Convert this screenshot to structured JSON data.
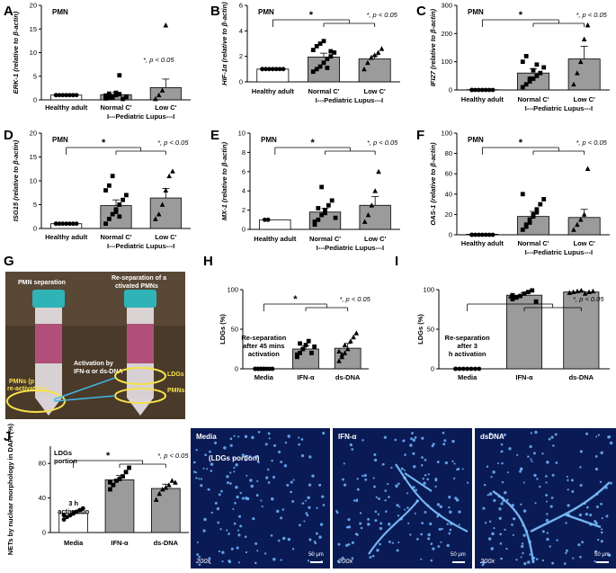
{
  "chart_data": [
    {
      "id": "A",
      "type": "bar",
      "panel": "A",
      "ylabel": "ERK-1 (relative to β-actin)",
      "cell": "PMN",
      "categories": [
        "Healthy adult",
        "Normal C'",
        "Low C'"
      ],
      "group_label": "I---Pediatric Lupus---I",
      "yticks": [
        0,
        5,
        10,
        15,
        20
      ],
      "ylim": [
        0,
        20
      ],
      "values": [
        1,
        1.1,
        2.6
      ],
      "errors": [
        0.05,
        0.5,
        1.8
      ],
      "points": [
        [
          1,
          1,
          1,
          1,
          1,
          1,
          1,
          1
        ],
        [
          0.3,
          0.5,
          0.8,
          1,
          1.2,
          0.2,
          0.6,
          0.9,
          1.3,
          0.4,
          1.5,
          5.2
        ],
        [
          0.2,
          1.0,
          2.0,
          15.8
        ]
      ],
      "markers": [
        "circle",
        "square",
        "triangle"
      ],
      "sig": {
        "star": "",
        "note": "*, p < 0.05"
      }
    },
    {
      "id": "B",
      "type": "bar",
      "panel": "B",
      "ylabel": "HIF-1α (relative to β-actin)",
      "cell": "PMN",
      "categories": [
        "Healthy adult",
        "Normal C'",
        "Low C'"
      ],
      "group_label": "I---Pediatric Lupus---I",
      "yticks": [
        0,
        2,
        4,
        6
      ],
      "ylim": [
        0,
        6
      ],
      "values": [
        1,
        1.95,
        1.8
      ],
      "errors": [
        0,
        0.3,
        0.25
      ],
      "points": [
        [
          1,
          1,
          1,
          1,
          1,
          1,
          1,
          1
        ],
        [
          0.8,
          1.0,
          1.2,
          1.5,
          1.8,
          2.0,
          2.3,
          2.5,
          2.8,
          3.0,
          3.2,
          1.1,
          2.4
        ],
        [
          1.0,
          1.5,
          1.9,
          2.1,
          2.3,
          2.6
        ]
      ],
      "markers": [
        "circle",
        "square",
        "triangle"
      ],
      "sig": {
        "star": "*",
        "note": "*, p < 0.05"
      }
    },
    {
      "id": "C",
      "type": "bar",
      "panel": "C",
      "ylabel": "IFI27 (relative to β-actin)",
      "cell": "PMN",
      "categories": [
        "Healthy adult",
        "Normal C'",
        "Low C'"
      ],
      "group_label": "I---Pediatric Lupus---I",
      "yticks": [
        0,
        100,
        200,
        300
      ],
      "ylim": [
        0,
        300
      ],
      "values": [
        1,
        60,
        110
      ],
      "errors": [
        0.5,
        15,
        45
      ],
      "points": [
        [
          0,
          0,
          0,
          0,
          0,
          0,
          0,
          0
        ],
        [
          10,
          20,
          30,
          40,
          50,
          60,
          80,
          100,
          120,
          40,
          70,
          90
        ],
        [
          20,
          60,
          100,
          180,
          230
        ]
      ],
      "markers": [
        "circle",
        "square",
        "triangle"
      ],
      "sig": {
        "star": "*",
        "note": "*, p < 0.05"
      }
    },
    {
      "id": "D",
      "type": "bar",
      "panel": "D",
      "ylabel": "ISG15 (relative to β-actin)",
      "cell": "PMN",
      "categories": [
        "Healthy adult",
        "Normal C'",
        "Low C'"
      ],
      "group_label": "I---Pediatric Lupus---I",
      "yticks": [
        0,
        5,
        10,
        15,
        20
      ],
      "ylim": [
        0,
        20
      ],
      "values": [
        1,
        4.8,
        6.4
      ],
      "errors": [
        0,
        1.2,
        2
      ],
      "points": [
        [
          1,
          1,
          1,
          1,
          1,
          1,
          1,
          1
        ],
        [
          1,
          2,
          3,
          4,
          5,
          6,
          7,
          8,
          9,
          11,
          3.5,
          2.5
        ],
        [
          2,
          3,
          5,
          8,
          11,
          12
        ]
      ],
      "markers": [
        "circle",
        "square",
        "triangle"
      ],
      "sig": {
        "star": "*",
        "note": "*, p < 0.05"
      }
    },
    {
      "id": "E",
      "type": "bar",
      "panel": "E",
      "ylabel": "MX-1 (relative to β-actin)",
      "cell": "PMN",
      "categories": [
        "Healthy adult",
        "Normal C'",
        "Low C'"
      ],
      "group_label": "I---Pediatric Lupus---I",
      "yticks": [
        0,
        2,
        4,
        6,
        8,
        10
      ],
      "ylim": [
        0,
        10
      ],
      "values": [
        1,
        1.8,
        2.5
      ],
      "errors": [
        0,
        0.4,
        0.9
      ],
      "points": [
        [
          1,
          1
        ],
        [
          0.5,
          1,
          1.5,
          2,
          2.5,
          3,
          1.2,
          0.8,
          2.2,
          4.4,
          1.7
        ],
        [
          0.8,
          1.5,
          2.5,
          4,
          6
        ]
      ],
      "markers": [
        "circle",
        "square",
        "triangle"
      ],
      "sig": {
        "star": "*",
        "note": "*, p < 0.05"
      }
    },
    {
      "id": "F",
      "type": "bar",
      "panel": "F",
      "ylabel": "OAS-1 (relative to β-actin)",
      "cell": "PMN",
      "categories": [
        "Healthy adult",
        "Normal C'",
        "Low C'"
      ],
      "group_label": "I---Pediatric Lupus---I",
      "yticks": [
        0,
        20,
        40,
        60,
        80,
        100
      ],
      "ylim": [
        0,
        100
      ],
      "values": [
        0.5,
        18,
        17
      ],
      "errors": [
        0,
        5,
        8
      ],
      "points": [
        [
          0,
          0,
          0,
          0,
          0,
          0,
          0,
          0
        ],
        [
          5,
          10,
          15,
          20,
          25,
          30,
          35,
          40,
          8,
          12,
          18,
          22
        ],
        [
          5,
          10,
          15,
          20,
          65
        ]
      ],
      "markers": [
        "circle",
        "square",
        "triangle"
      ],
      "sig": {
        "star": "*",
        "note": "*, p < 0.05"
      }
    },
    {
      "id": "H",
      "type": "bar",
      "panel": "H",
      "ylabel": "LDGs (%)",
      "categories": [
        "Media",
        "IFN-α",
        "ds-DNA"
      ],
      "yticks": [
        0,
        50,
        100
      ],
      "ylim": [
        0,
        100
      ],
      "values": [
        0,
        25,
        26
      ],
      "errors": [
        0,
        4,
        6
      ],
      "points": [
        [
          0,
          0,
          0,
          0,
          0,
          0,
          0,
          0,
          0,
          0,
          0
        ],
        [
          15,
          20,
          25,
          30,
          35,
          20,
          28,
          18,
          32
        ],
        [
          10,
          15,
          20,
          25,
          35,
          40,
          45,
          22,
          18,
          30
        ]
      ],
      "markers": [
        "circle",
        "square",
        "triangle"
      ],
      "annotation": "Re-separation after 45 mins activation",
      "sig": {
        "star": "*",
        "note": "*, p < 0.05"
      }
    },
    {
      "id": "I",
      "type": "bar",
      "panel": "I",
      "ylabel": "LDGs (%)",
      "categories": [
        "Media",
        "IFN-α",
        "ds-DNA"
      ],
      "yticks": [
        0,
        50,
        100
      ],
      "ylim": [
        0,
        100
      ],
      "values": [
        0,
        93,
        97
      ],
      "errors": [
        0,
        3,
        1
      ],
      "points": [
        [
          0,
          0,
          0,
          0,
          0,
          0,
          0,
          0
        ],
        [
          88,
          90,
          92,
          95,
          97,
          99,
          85,
          93
        ],
        [
          96,
          97,
          98,
          99,
          95,
          97,
          98
        ]
      ],
      "markers": [
        "circle",
        "square",
        "triangle"
      ],
      "annotation": "Re-separation after 3 h activation",
      "sig": {
        "star": "*",
        "note": "*, p < 0.05"
      }
    },
    {
      "id": "J",
      "type": "bar",
      "panel": "J",
      "ylabel": "NETs by nuclear morphology in DAPI (%)",
      "categories": [
        "Media",
        "IFN-α",
        "ds-DNA"
      ],
      "yticks": [
        0,
        40,
        80
      ],
      "ylim": [
        0,
        100
      ],
      "values": [
        22,
        61,
        51
      ],
      "errors": [
        3,
        5,
        5
      ],
      "points": [
        [
          15,
          18,
          20,
          22,
          24,
          26,
          28,
          20
        ],
        [
          50,
          55,
          60,
          62,
          65,
          70,
          75,
          58
        ],
        [
          38,
          45,
          50,
          52,
          55,
          60,
          58
        ]
      ],
      "markers": [
        "circle",
        "square",
        "triangle"
      ],
      "annotation": "3 h activation",
      "portion": "LDGs portion",
      "sig": {
        "star": "*",
        "note": "*, p < 0.05"
      }
    }
  ],
  "photo_g": {
    "label": "G",
    "left_title": "PMN separation",
    "right_title": "Re-separation of activated PMNs",
    "activation": "Activation by IFN-α or ds-DNA",
    "ldgs": "LDGs",
    "pmns": "PMNs",
    "pre": "PMNs (pre-activation)"
  },
  "micrographs": [
    {
      "label": "Media",
      "sub": "(LDGs portion)",
      "mag": "200x",
      "scale": "50 μm"
    },
    {
      "label": "IFN-α",
      "sub": "",
      "mag": "200x",
      "scale": "50 μm"
    },
    {
      "label": "dsDNA",
      "sub": "",
      "mag": "200x",
      "scale": "50 μm"
    }
  ],
  "colors": {
    "bar_gray": "#9b9b9b",
    "micro_bg": "#0a1a55",
    "cell_blue": "#6fb6ff"
  }
}
